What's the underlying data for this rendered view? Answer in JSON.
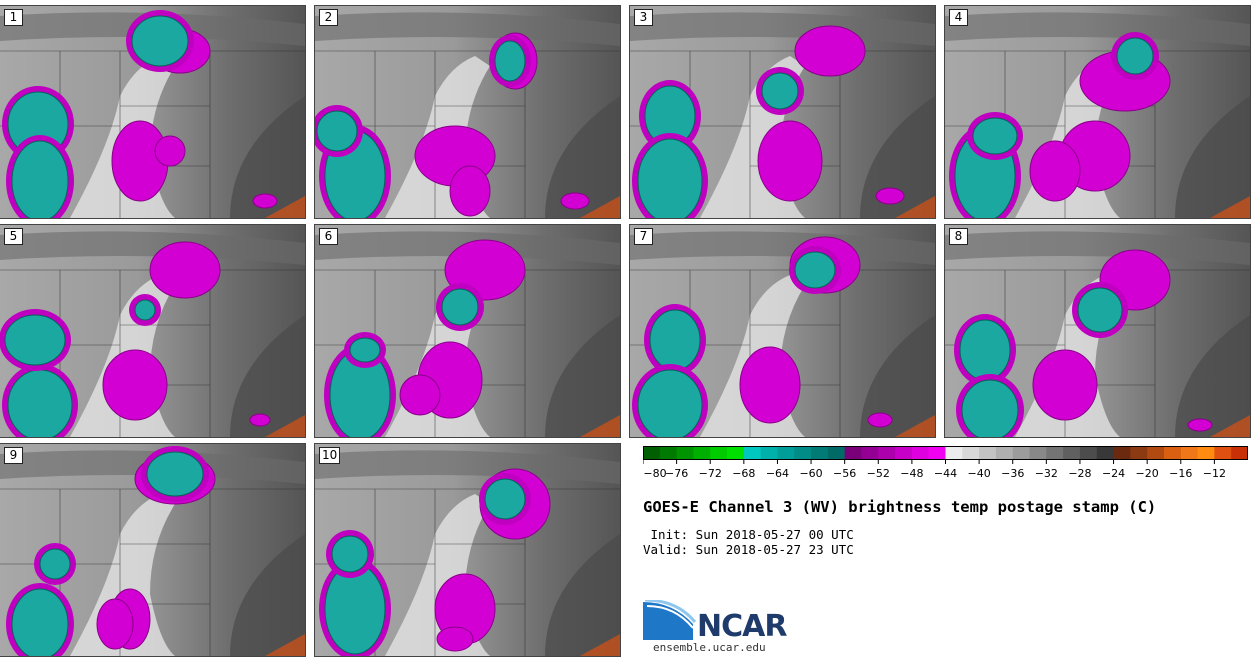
{
  "panels": [
    {
      "num": "1"
    },
    {
      "num": "2"
    },
    {
      "num": "3"
    },
    {
      "num": "4"
    },
    {
      "num": "5"
    },
    {
      "num": "6"
    },
    {
      "num": "7"
    },
    {
      "num": "8"
    },
    {
      "num": "9"
    },
    {
      "num": "10"
    }
  ],
  "colorbar": {
    "colors": [
      "#005f00",
      "#007a00",
      "#009500",
      "#00b000",
      "#00cc00",
      "#00e000",
      "#00c8c0",
      "#00b0aa",
      "#009e98",
      "#008c87",
      "#007b76",
      "#006a66",
      "#7a007a",
      "#940094",
      "#ad00ad",
      "#c600c6",
      "#df00df",
      "#f200f2",
      "#ececec",
      "#d8d8d8",
      "#c4c4c4",
      "#b0b0b0",
      "#9c9c9c",
      "#888888",
      "#747474",
      "#606060",
      "#4c4c4c",
      "#383838",
      "#6b2a10",
      "#8c3a12",
      "#b04a10",
      "#d86010",
      "#f07818",
      "#ff8c10",
      "#e05010",
      "#c83008"
    ],
    "ticks": [
      "−80",
      "−76",
      "−72",
      "−68",
      "−64",
      "−60",
      "−56",
      "−52",
      "−48",
      "−44",
      "−40",
      "−36",
      "−32",
      "−28",
      "−24",
      "−20",
      "−16",
      "−12"
    ]
  },
  "title": "GOES-E Channel 3 (WV) brightness temp postage stamp (C)",
  "init": " Init: Sun 2018-05-27 00 UTC",
  "valid": "Valid: Sun 2018-05-27 23 UTC",
  "logo": {
    "text": "NCAR",
    "url": "ensemble.ucar.edu"
  }
}
